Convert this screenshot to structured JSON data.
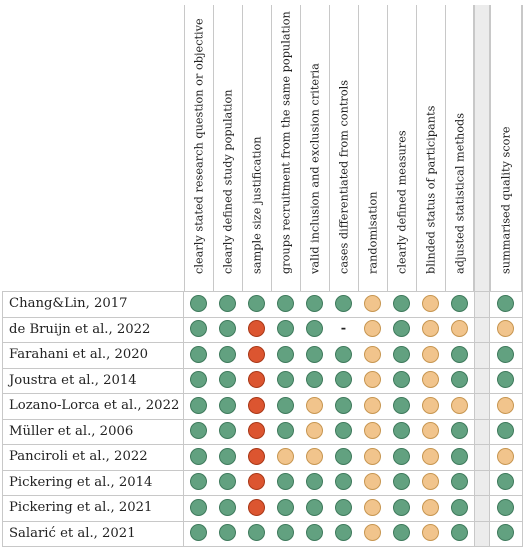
{
  "columns": [
    "clearly stated research question or objective",
    "clearly defined study population",
    "sample size justification",
    "groups recruitment from the same population",
    "valid inclusion and exclusion criteria",
    "cases differentiated from controls",
    "randomisation",
    "clearly defined measures",
    "blinded status of participants",
    "adjusted statistical methods",
    "summarised quality score"
  ],
  "rating_colors": {
    "G": "#62a180",
    "Y": "#f1c48c",
    "R": "#dc5530"
  },
  "rows": [
    {
      "study": "Chang&Lin, 2017",
      "ratings": [
        "G",
        "G",
        "G",
        "G",
        "G",
        "G",
        "Y",
        "G",
        "Y",
        "G",
        "G"
      ]
    },
    {
      "study": "de Bruijn et al., 2022",
      "ratings": [
        "G",
        "G",
        "R",
        "G",
        "G",
        "-",
        "Y",
        "G",
        "Y",
        "Y",
        "Y"
      ]
    },
    {
      "study": "Farahani et al., 2020",
      "ratings": [
        "G",
        "G",
        "R",
        "G",
        "G",
        "G",
        "Y",
        "G",
        "Y",
        "G",
        "G"
      ]
    },
    {
      "study": "Joustra et al., 2014",
      "ratings": [
        "G",
        "G",
        "R",
        "G",
        "G",
        "G",
        "Y",
        "G",
        "Y",
        "G",
        "G"
      ]
    },
    {
      "study": "Lozano-Lorca et al., 2022",
      "ratings": [
        "G",
        "G",
        "R",
        "G",
        "Y",
        "G",
        "Y",
        "G",
        "Y",
        "Y",
        "Y"
      ]
    },
    {
      "study": "Müller et al., 2006",
      "ratings": [
        "G",
        "G",
        "R",
        "G",
        "Y",
        "G",
        "Y",
        "G",
        "Y",
        "G",
        "G"
      ]
    },
    {
      "study": "Panciroli et al., 2022",
      "ratings": [
        "G",
        "G",
        "R",
        "Y",
        "Y",
        "G",
        "Y",
        "G",
        "Y",
        "G",
        "Y"
      ]
    },
    {
      "study": "Pickering et al., 2014",
      "ratings": [
        "G",
        "G",
        "R",
        "G",
        "G",
        "G",
        "Y",
        "G",
        "Y",
        "G",
        "G"
      ]
    },
    {
      "study": "Pickering et al., 2021",
      "ratings": [
        "G",
        "G",
        "R",
        "G",
        "G",
        "G",
        "Y",
        "G",
        "Y",
        "G",
        "G"
      ]
    },
    {
      "study": "Salarić et al., 2021",
      "ratings": [
        "G",
        "G",
        "G",
        "G",
        "G",
        "G",
        "Y",
        "G",
        "Y",
        "G",
        "G"
      ]
    }
  ]
}
